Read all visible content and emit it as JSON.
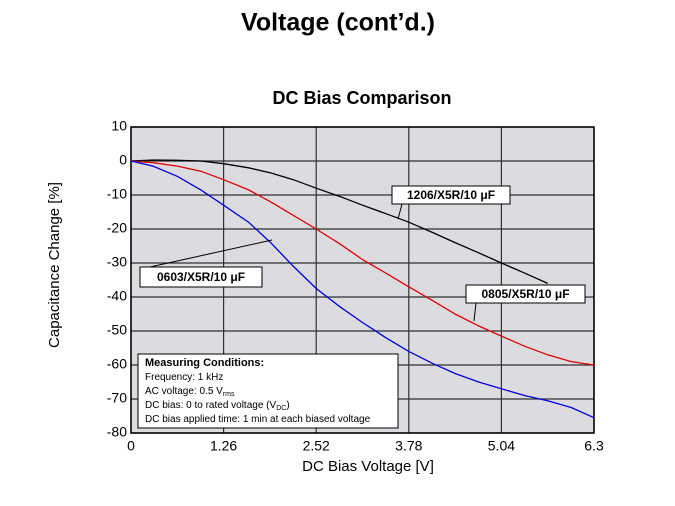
{
  "slide_title": "Voltage (cont’d.)",
  "chart_data": {
    "type": "line",
    "title": "DC Bias Comparison",
    "xlabel": "DC Bias Voltage [V]",
    "ylabel": "Capacitance Change [%]",
    "x": [
      0,
      0.3,
      0.63,
      0.95,
      1.26,
      1.6,
      1.9,
      2.21,
      2.52,
      2.85,
      3.15,
      3.47,
      3.78,
      4.1,
      4.41,
      4.73,
      5.04,
      5.36,
      5.67,
      5.99,
      6.3
    ],
    "series": [
      {
        "name": "1206/X5R/10 μF",
        "color": "#000000",
        "values": [
          0,
          0.3,
          0.2,
          0,
          -0.8,
          -2,
          -3.5,
          -5.5,
          -8,
          -10.5,
          -13,
          -15.5,
          -18,
          -21,
          -24,
          -27,
          -30,
          -33,
          -36,
          null,
          null
        ]
      },
      {
        "name": "0805/X5R/10 μF",
        "color": "#e00000",
        "values": [
          0,
          -0.5,
          -1.5,
          -3,
          -5.5,
          -8.5,
          -12,
          -16,
          -20,
          -24.5,
          -29,
          -33,
          -37,
          -41,
          -45,
          -48.5,
          -51.5,
          -54.5,
          -57,
          -59,
          -60
        ]
      },
      {
        "name": "0603/X5R/10 μF",
        "color": "#0000e0",
        "values": [
          0,
          -1.5,
          -4.5,
          -8.5,
          -13,
          -18,
          -24,
          -31,
          -37.5,
          -43,
          -47.5,
          -52,
          -56,
          -59.5,
          -62.5,
          -65,
          -67,
          -69,
          -70.5,
          -72.5,
          -75.5
        ]
      }
    ],
    "xlim": [
      0,
      6.3
    ],
    "xticks": [
      0,
      1.26,
      2.52,
      3.78,
      5.04,
      6.3
    ],
    "ylim": [
      -80,
      10
    ],
    "yticks": [
      10,
      0,
      -10,
      -20,
      -30,
      -40,
      -50,
      -60,
      -70,
      -80
    ],
    "grid": true,
    "conditions": {
      "title": "Measuring Conditions:",
      "lines": [
        {
          "text": "Frequency: 1 kHz"
        },
        {
          "text": "AC voltage: 0.5 V",
          "sub": "rms"
        },
        {
          "text": "DC bias: 0 to rated voltage (V",
          "sub": "DC",
          "after": ")"
        },
        {
          "text": "DC bias applied time: 1 min at each biased voltage"
        }
      ]
    }
  }
}
